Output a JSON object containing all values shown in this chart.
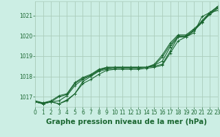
{
  "bg_color": "#cceee4",
  "grid_color": "#aaccbb",
  "line_color": "#1a6630",
  "title": "Graphe pression niveau de la mer (hPa)",
  "xlim": [
    0,
    23
  ],
  "ylim": [
    1016.5,
    1021.7
  ],
  "yticks": [
    1017,
    1018,
    1019,
    1020,
    1021
  ],
  "xticks": [
    0,
    1,
    2,
    3,
    4,
    5,
    6,
    7,
    8,
    9,
    10,
    11,
    12,
    13,
    14,
    15,
    16,
    17,
    18,
    19,
    20,
    21,
    22,
    23
  ],
  "series": [
    [
      1016.75,
      1016.65,
      1016.75,
      1016.65,
      1016.8,
      1017.15,
      1017.65,
      1017.85,
      1018.1,
      1018.3,
      1018.35,
      1018.35,
      1018.35,
      1018.35,
      1018.4,
      1018.45,
      1018.55,
      1019.15,
      1019.75,
      1019.95,
      1020.15,
      1020.95,
      1021.15,
      1021.25
    ],
    [
      1016.75,
      1016.65,
      1016.75,
      1016.65,
      1016.85,
      1017.15,
      1017.75,
      1018.0,
      1018.25,
      1018.35,
      1018.4,
      1018.4,
      1018.4,
      1018.4,
      1018.45,
      1018.5,
      1018.6,
      1019.25,
      1019.95,
      1019.95,
      1020.25,
      1020.65,
      1021.15,
      1021.45
    ],
    [
      1016.75,
      1016.65,
      1016.75,
      1016.8,
      1017.05,
      1017.55,
      1017.85,
      1018.05,
      1018.3,
      1018.4,
      1018.45,
      1018.45,
      1018.45,
      1018.45,
      1018.45,
      1018.55,
      1018.75,
      1019.45,
      1019.95,
      1019.95,
      1020.25,
      1020.75,
      1021.15,
      1021.45
    ],
    [
      1016.75,
      1016.7,
      1016.75,
      1017.0,
      1017.1,
      1017.65,
      1017.9,
      1018.05,
      1018.3,
      1018.45,
      1018.45,
      1018.45,
      1018.45,
      1018.45,
      1018.45,
      1018.55,
      1018.95,
      1019.55,
      1020.0,
      1020.0,
      1020.3,
      1020.65,
      1021.1,
      1021.4
    ],
    [
      1016.8,
      1016.7,
      1016.8,
      1017.05,
      1017.15,
      1017.7,
      1017.95,
      1018.1,
      1018.35,
      1018.45,
      1018.45,
      1018.45,
      1018.45,
      1018.45,
      1018.45,
      1018.6,
      1019.05,
      1019.65,
      1020.05,
      1020.05,
      1020.35,
      1020.7,
      1021.05,
      1021.35
    ]
  ],
  "marker": "+",
  "markersize": 3,
  "linewidth": 0.8,
  "title_fontsize": 7.5,
  "tick_fontsize": 5.5
}
